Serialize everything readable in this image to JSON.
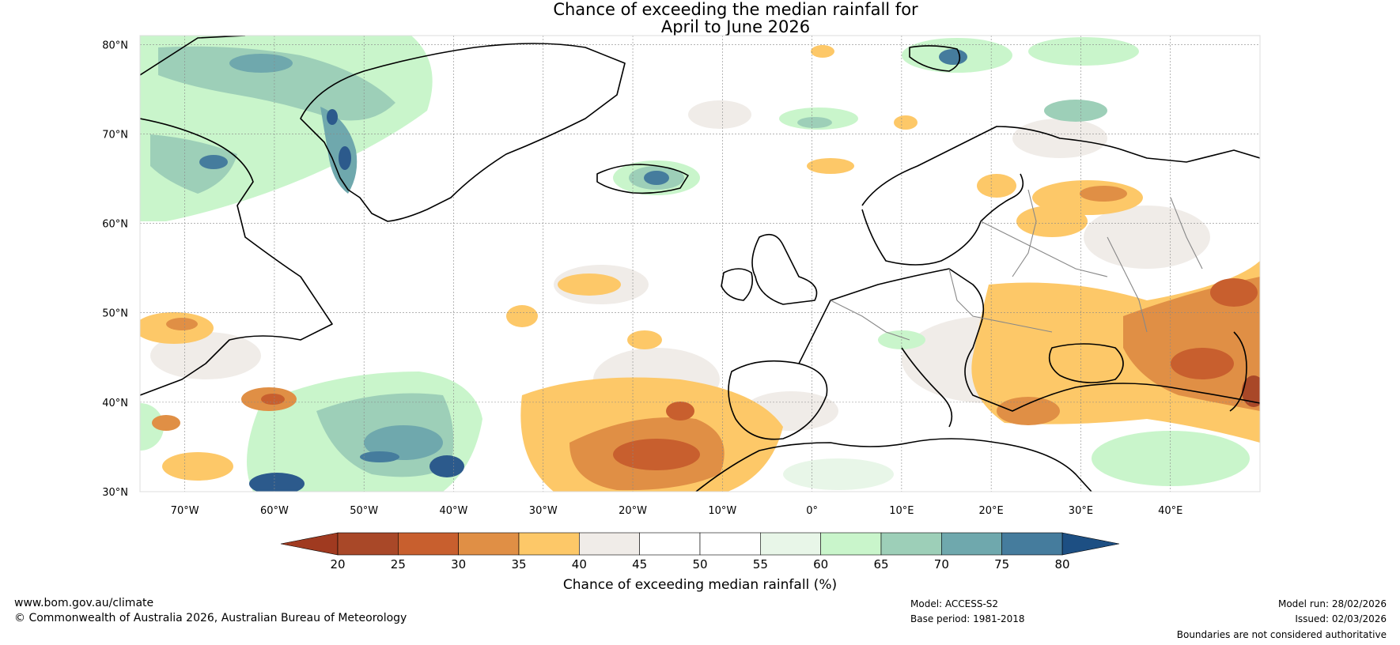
{
  "title": {
    "line1": "Chance of exceeding the median rainfall for",
    "line2": "April to June 2026"
  },
  "map": {
    "lat_labels": [
      "80°N",
      "70°N",
      "60°N",
      "50°N",
      "40°N",
      "30°N"
    ],
    "lon_labels": [
      "70°W",
      "60°W",
      "50°W",
      "40°W",
      "30°W",
      "20°W",
      "10°W",
      "0°",
      "10°E",
      "20°E",
      "30°E",
      "40°E"
    ],
    "extent": {
      "lon_min": -75,
      "lon_max": 50,
      "lat_min": 30,
      "lat_max": 81
    }
  },
  "colorbar": {
    "ticks": [
      "20",
      "25",
      "30",
      "35",
      "40",
      "45",
      "50",
      "55",
      "60",
      "65",
      "70",
      "75",
      "80"
    ],
    "colors": [
      "#a94828",
      "#c85f2e",
      "#e08f45",
      "#fdc868",
      "#f0ece8",
      "#ffffff",
      "#ffffff",
      "#e8f6e8",
      "#c9f5cb",
      "#9dcfb8",
      "#6fa8ad",
      "#457c9d"
    ],
    "low_color": "#a03a20",
    "high_color": "#1d4f83",
    "label": "Chance of exceeding median rainfall (%)"
  },
  "footer": {
    "website": "www.bom.gov.au/climate",
    "copyright": "© Commonwealth of Australia 2026, Australian Bureau of Meteorology",
    "model": "Model: ACCESS-S2",
    "base_period": "Base period: 1981-2018",
    "model_run": "Model run: 28/02/2026",
    "issued": "Issued: 02/03/2026",
    "disclaimer": "Boundaries are not considered authoritative"
  }
}
